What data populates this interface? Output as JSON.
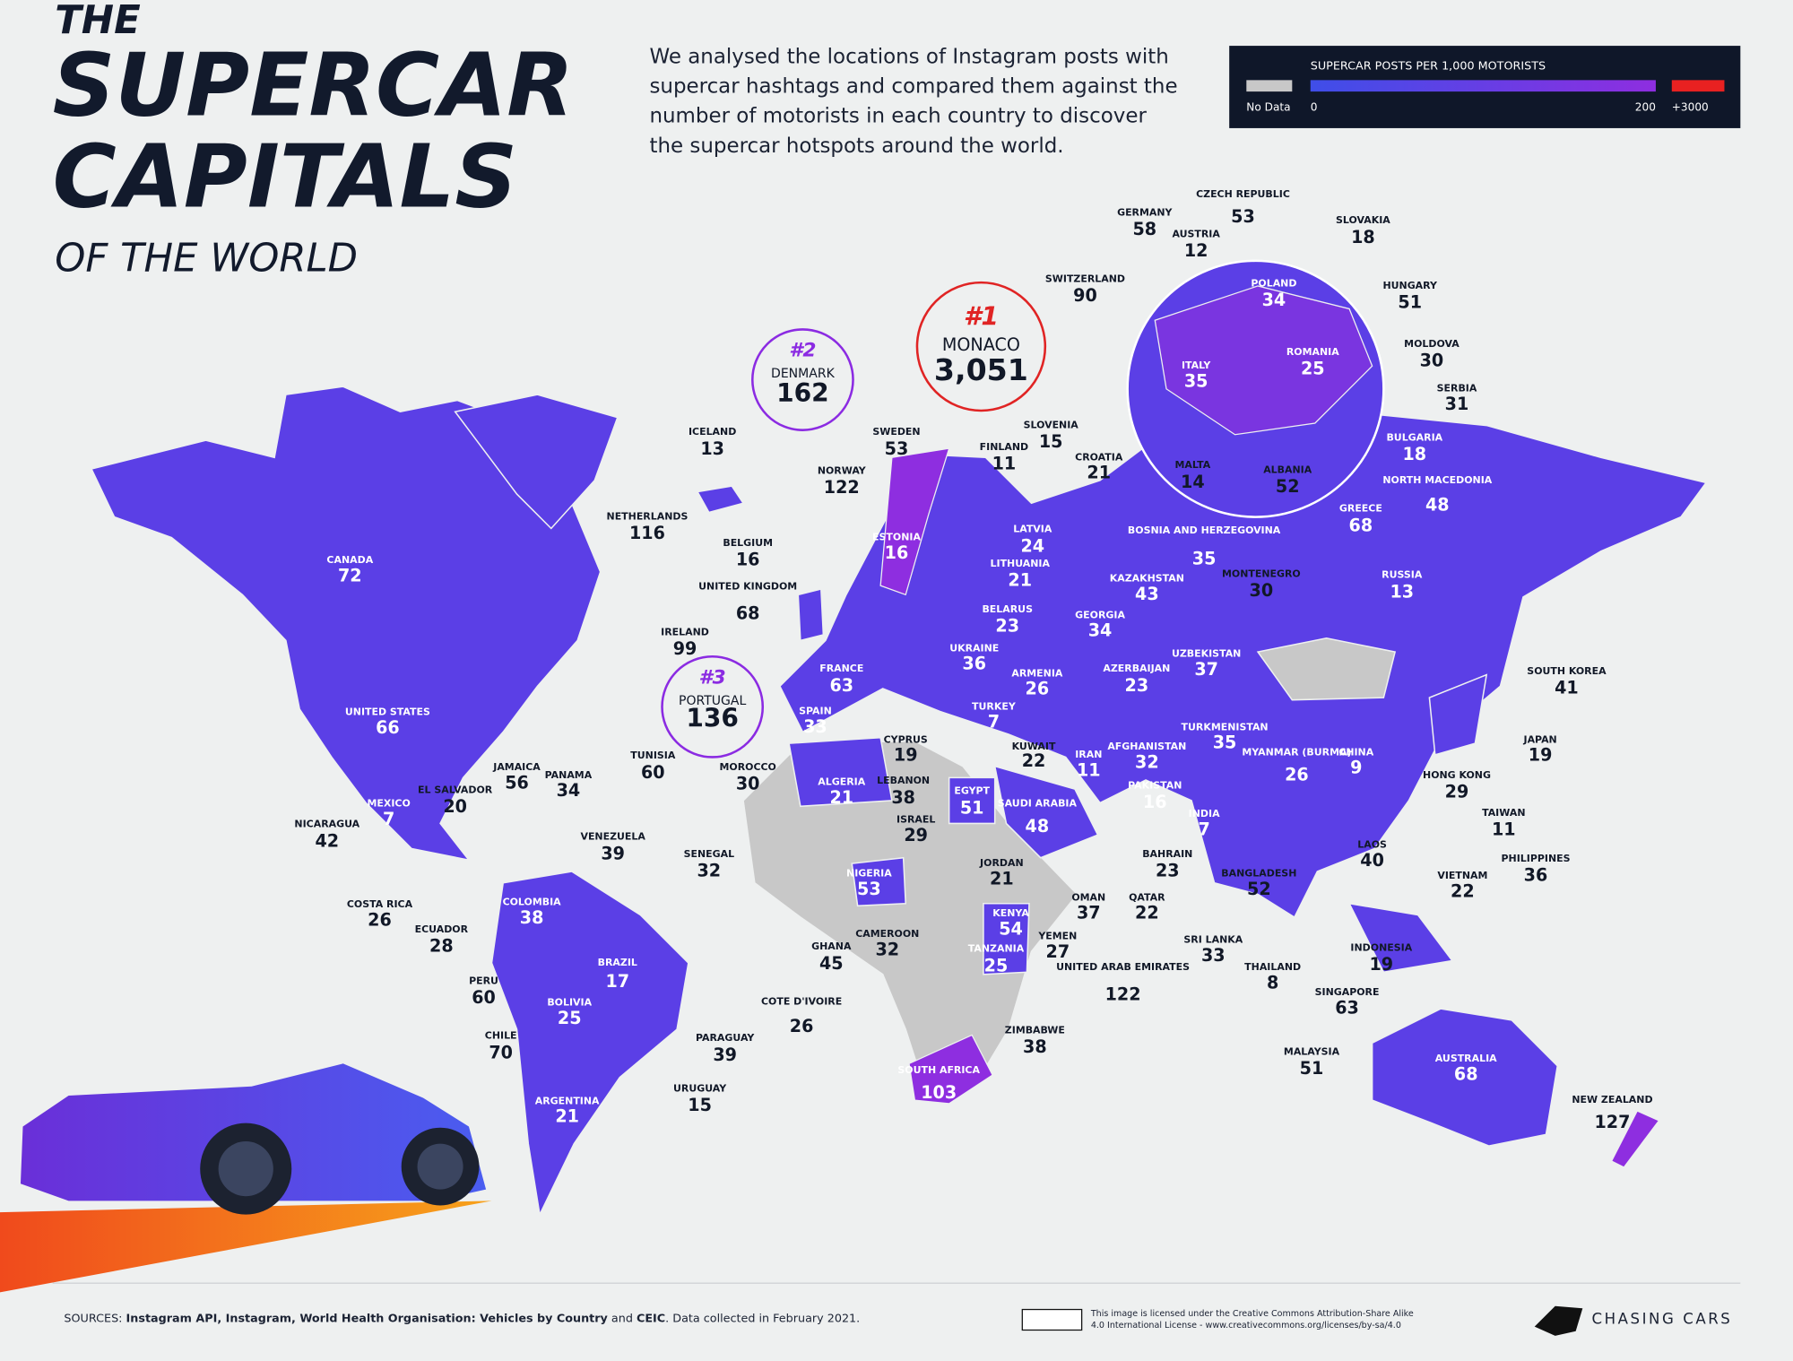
{
  "header": {
    "title_small": "THE",
    "title_line1": "SUPERCAR",
    "title_line2": "CAPITALS",
    "subtitle": "OF THE WORLD",
    "description": [
      "We analysed the locations of Instagram posts with",
      "supercar hashtags and compared them against the",
      "number of motorists in each country to discover",
      "the supercar hotspots around the world."
    ]
  },
  "legend": {
    "title": "SUPERCAR POSTS PER 1,000 MOTORISTS",
    "no_data": "No Data",
    "min": 0,
    "max": 200,
    "top": "+3000"
  },
  "countries": [
    {
      "name": "CANADA",
      "value": 72
    },
    {
      "name": "UNITED STATES",
      "value": 66
    },
    {
      "name": "MEXICO",
      "value": 7
    },
    {
      "name": "EL SALVADOR",
      "value": 20
    },
    {
      "name": "JAMAICA",
      "value": 56
    },
    {
      "name": "PANAMA",
      "value": 34
    },
    {
      "name": "NICARAGUA",
      "value": 42
    },
    {
      "name": "VENEZUELA",
      "value": 39
    },
    {
      "name": "COSTA RICA",
      "value": 26
    },
    {
      "name": "COLOMBIA",
      "value": 38
    },
    {
      "name": "ECUADOR",
      "value": 28
    },
    {
      "name": "BRAZIL",
      "value": 17
    },
    {
      "name": "PERU",
      "value": 60
    },
    {
      "name": "BOLIVIA",
      "value": 25
    },
    {
      "name": "CHILE",
      "value": 70
    },
    {
      "name": "PARAGUAY",
      "value": 39
    },
    {
      "name": "URUGUAY",
      "value": 15
    },
    {
      "name": "ARGENTINA",
      "value": 21
    },
    {
      "name": "ICELAND",
      "value": 13
    },
    {
      "name": "DENMARK",
      "value": 162,
      "rank": "#2"
    },
    {
      "name": "MONACO",
      "value": {
        "value": 3051,
        "label": "3,051"
      },
      "rank": "#1"
    },
    {
      "name": "PORTUGAL",
      "value": 136,
      "rank": "#3"
    },
    {
      "name": "NETHERLANDS",
      "value": 116
    },
    {
      "name": "BELGIUM",
      "value": 16
    },
    {
      "name": "UNITED KINGDOM",
      "value": 68
    },
    {
      "name": "IRELAND",
      "value": 99
    },
    {
      "name": "FRANCE",
      "value": 63
    },
    {
      "name": "SPAIN",
      "value": 33
    },
    {
      "name": "TUNISIA",
      "value": 60
    },
    {
      "name": "MOROCCO",
      "value": 30
    },
    {
      "name": "ALGERIA",
      "value": 21
    },
    {
      "name": "SWEDEN",
      "value": 53
    },
    {
      "name": "NORWAY",
      "value": 122
    },
    {
      "name": "FINLAND",
      "value": 11
    },
    {
      "name": "ESTONIA",
      "value": 16
    },
    {
      "name": "LATVIA",
      "value": 24
    },
    {
      "name": "LITHUANIA",
      "value": 21
    },
    {
      "name": "BELARUS",
      "value": 23
    },
    {
      "name": "UKRAINE",
      "value": 36
    },
    {
      "name": "TURKEY",
      "value": 7
    },
    {
      "name": "CYPRUS",
      "value": 19
    },
    {
      "name": "LEBANON",
      "value": 38
    },
    {
      "name": "ISRAEL",
      "value": 29
    },
    {
      "name": "EGYPT",
      "value": 51
    },
    {
      "name": "KUWAIT",
      "value": 22
    },
    {
      "name": "SAUDI ARABIA",
      "value": 48
    },
    {
      "name": "JORDAN",
      "value": 21
    },
    {
      "name": "SENEGAL",
      "value": 32
    },
    {
      "name": "NIGERIA",
      "value": 53
    },
    {
      "name": "GHANA",
      "value": 45
    },
    {
      "name": "CAMEROON",
      "value": 32
    },
    {
      "name": "COTE D'IVOIRE",
      "value": 26
    },
    {
      "name": "KENYA",
      "value": 54
    },
    {
      "name": "TANZANIA",
      "value": 25
    },
    {
      "name": "ZIMBABWE",
      "value": 38
    },
    {
      "name": "SOUTH AFRICA",
      "value": 103
    },
    {
      "name": "YEMEN",
      "value": 27
    },
    {
      "name": "OMAN",
      "value": 37
    },
    {
      "name": "QATAR",
      "value": 22
    },
    {
      "name": "BAHRAIN",
      "value": 23
    },
    {
      "name": "UNITED ARAB EMIRATES",
      "value": 122
    },
    {
      "name": "IRAN",
      "value": 11
    },
    {
      "name": "ARMENIA",
      "value": 26
    },
    {
      "name": "GEORGIA",
      "value": 34
    },
    {
      "name": "AZERBAIJAN",
      "value": 23
    },
    {
      "name": "KAZAKHSTAN",
      "value": 43
    },
    {
      "name": "UZBEKISTAN",
      "value": 37
    },
    {
      "name": "TURKMENISTAN",
      "value": 35
    },
    {
      "name": "AFGHANISTAN",
      "value": 32
    },
    {
      "name": "PAKISTAN",
      "value": 16
    },
    {
      "name": "INDIA",
      "value": 7
    },
    {
      "name": "SRI LANKA",
      "value": 33
    },
    {
      "name": "BANGLADESH",
      "value": 52
    },
    {
      "name": "MYANMAR (BURMA)",
      "value": 26
    },
    {
      "name": "THAILAND",
      "value": 8
    },
    {
      "name": "MALAYSIA",
      "value": 51
    },
    {
      "name": "SINGAPORE",
      "value": 63
    },
    {
      "name": "INDONESIA",
      "value": 19
    },
    {
      "name": "CHINA",
      "value": 9
    },
    {
      "name": "LAOS",
      "value": 40
    },
    {
      "name": "VIETNAM",
      "value": 22
    },
    {
      "name": "PHILIPPINES",
      "value": 36
    },
    {
      "name": "TAIWAN",
      "value": 11
    },
    {
      "name": "HONG KONG",
      "value": 29
    },
    {
      "name": "JAPAN",
      "value": 19
    },
    {
      "name": "SOUTH KOREA",
      "value": 41
    },
    {
      "name": "RUSSIA",
      "value": 13
    },
    {
      "name": "AUSTRALIA",
      "value": 68
    },
    {
      "name": "NEW ZEALAND",
      "value": 127
    },
    {
      "name": "GERMANY",
      "value": 58
    },
    {
      "name": "CZECH REPUBLIC",
      "value": 53
    },
    {
      "name": "AUSTRIA",
      "value": 12
    },
    {
      "name": "SLOVAKIA",
      "value": 18
    },
    {
      "name": "SWITZERLAND",
      "value": 90
    },
    {
      "name": "POLAND",
      "value": 34
    },
    {
      "name": "HUNGARY",
      "value": 51
    },
    {
      "name": "ROMANIA",
      "value": 25
    },
    {
      "name": "MOLDOVA",
      "value": 30
    },
    {
      "name": "ITALY",
      "value": 35
    },
    {
      "name": "SERBIA",
      "value": 31
    },
    {
      "name": "SLOVENIA",
      "value": 15
    },
    {
      "name": "CROATIA",
      "value": 21
    },
    {
      "name": "MALTA",
      "value": 14
    },
    {
      "name": "ALBANIA",
      "value": 52
    },
    {
      "name": "BULGARIA",
      "value": 18
    },
    {
      "name": "NORTH MACEDONIA",
      "value": 48
    },
    {
      "name": "GREECE",
      "value": 68
    },
    {
      "name": "BOSNIA AND HERZEGOVINA",
      "value": 35
    },
    {
      "name": "MONTENEGRO",
      "value": 30
    }
  ],
  "footer": {
    "sources": [
      "SOURCES:",
      "Instagram API, Instagram, World Health Organisation: Vehicles by Country",
      "and",
      "CEIC",
      ". Data collected in February 2021."
    ],
    "license": [
      "This image is licensed under the Creative Commons Attribution-Share Alike",
      "4.0 International License - www.creativecommons.org/licenses/by-sa/4.0"
    ],
    "brand": "CHASING CARS"
  }
}
